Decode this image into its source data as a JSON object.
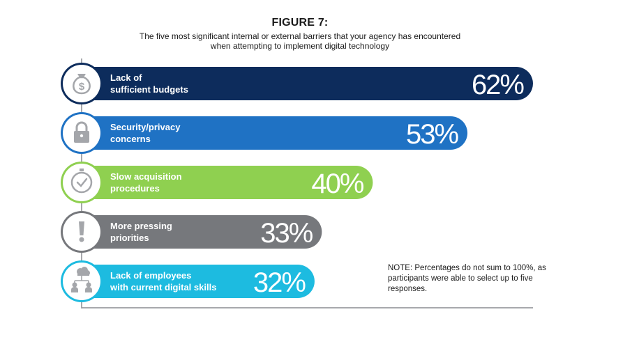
{
  "title": "FIGURE 7:",
  "subtitle_line1": "The five most significant internal or external barriers that your agency has encountered",
  "subtitle_line2": "when attempting to implement digital technology",
  "note": "NOTE: Percentages do not sum to 100%, as participants were able to select up to five responses.",
  "chart_data": {
    "type": "bar",
    "orientation": "horizontal",
    "title": "FIGURE 7:",
    "categories": [
      "Lack of sufficient budgets",
      "Security/privacy concerns",
      "Slow acquisition procedures",
      "More pressing priorities",
      "Lack of employees with current digital skills"
    ],
    "values": [
      62,
      53,
      40,
      33,
      32
    ],
    "value_labels": [
      "62%",
      "53%",
      "40%",
      "33%",
      "32%"
    ],
    "label_lines": [
      [
        "Lack of",
        "sufficient budgets"
      ],
      [
        "Security/privacy",
        "concerns"
      ],
      [
        "Slow acquisition",
        "procedures"
      ],
      [
        "More pressing",
        "priorities"
      ],
      [
        "Lack of employees",
        "with current digital skills"
      ]
    ],
    "colors": [
      "#0d2c5c",
      "#1f72c4",
      "#8fd050",
      "#76787c",
      "#1dbbe0"
    ],
    "icons": [
      "money-bag-icon",
      "padlock-icon",
      "clock-icon",
      "exclamation-icon",
      "people-network-icon"
    ],
    "unit": "%",
    "xlim": [
      0,
      62
    ],
    "legend": "none",
    "grid": false
  }
}
